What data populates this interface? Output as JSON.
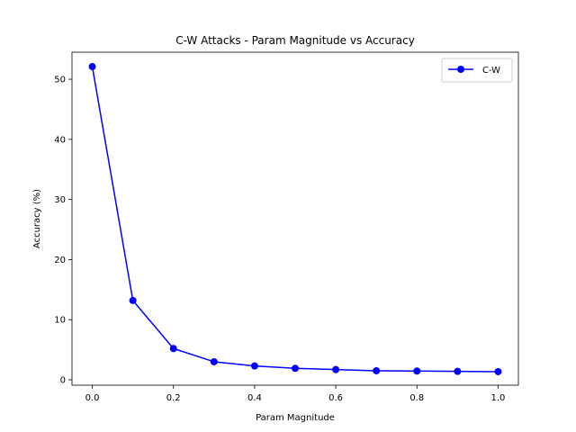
{
  "chart_data": {
    "type": "line",
    "title": "C-W Attacks - Param Magnitude vs Accuracy",
    "xlabel": "Param Magnitude",
    "ylabel": "Accuracy (%)",
    "xlim": [
      -0.05,
      1.05
    ],
    "ylim": [
      -0.9,
      54.5
    ],
    "xticks": [
      0.0,
      0.2,
      0.4,
      0.6,
      0.8,
      1.0
    ],
    "xtick_labels": [
      "0.0",
      "0.2",
      "0.4",
      "0.6",
      "0.8",
      "1.0"
    ],
    "yticks": [
      0,
      10,
      20,
      30,
      40,
      50
    ],
    "ytick_labels": [
      "0",
      "10",
      "20",
      "30",
      "40",
      "50"
    ],
    "grid": false,
    "legend_position": "top-right",
    "series": [
      {
        "name": "C-W",
        "color": "#0000ff",
        "marker": "circle",
        "x": [
          0.0,
          0.1,
          0.2,
          0.3,
          0.4,
          0.5,
          0.6,
          0.7,
          0.8,
          0.9,
          1.0
        ],
        "y": [
          52.1,
          13.2,
          5.2,
          3.0,
          2.3,
          1.9,
          1.7,
          1.5,
          1.45,
          1.4,
          1.35
        ]
      }
    ]
  }
}
